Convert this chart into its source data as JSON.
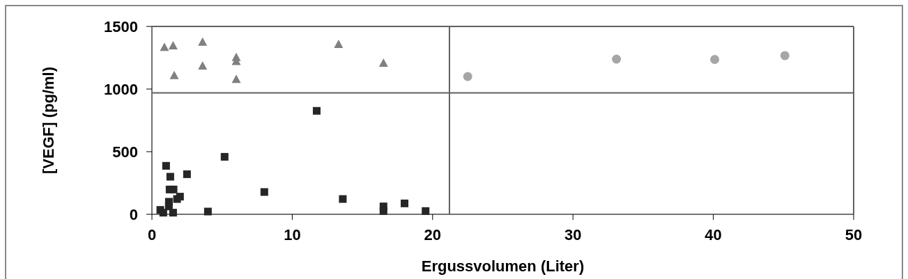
{
  "chart_data": {
    "type": "scatter",
    "xlabel": "Ergussvolumen (Liter)",
    "ylabel": "[VEGF] (pg/ml)",
    "xlim": [
      0,
      50
    ],
    "xticks": [
      0,
      10,
      20,
      30,
      40,
      50
    ],
    "ylim": [
      0,
      1500
    ],
    "yticks": [
      0,
      500,
      1000,
      1500
    ],
    "series": [
      {
        "color": "#262626",
        "marker": "square",
        "x": [
          11.74,
          5.18,
          1.01,
          1.31,
          2.5,
          1.26,
          1.54,
          8.01,
          2.0,
          1.79,
          13.6,
          1.21,
          1.21,
          16.5,
          16.5,
          18.0,
          19.5,
          3.99,
          0.6,
          0.81,
          1.51
        ],
        "values": [
          826,
          459,
          387,
          300,
          320,
          198,
          198,
          178,
          141,
          122,
          122,
          100,
          63,
          63,
          26,
          87,
          26,
          22,
          35,
          13,
          13
        ]
      },
      {
        "color": "#808080",
        "marker": "triangle",
        "x": [
          0.89,
          1.51,
          3.61,
          13.3,
          6.01,
          6.01,
          3.61,
          16.5,
          1.59,
          6.01
        ],
        "values": [
          1332,
          1344,
          1374,
          1356,
          1252,
          1220,
          1183,
          1206,
          1107,
          1076
        ]
      },
      {
        "color": "#a6a6a6",
        "marker": "circle",
        "x": [
          22.5,
          33.1,
          40.1,
          45.1
        ],
        "values": [
          1100,
          1239,
          1236,
          1267
        ]
      }
    ],
    "ref_lines": [
      {
        "axis": "x",
        "value": 21.2,
        "color": "#606060"
      },
      {
        "axis": "y",
        "value": 970,
        "color": "#606060"
      }
    ]
  }
}
